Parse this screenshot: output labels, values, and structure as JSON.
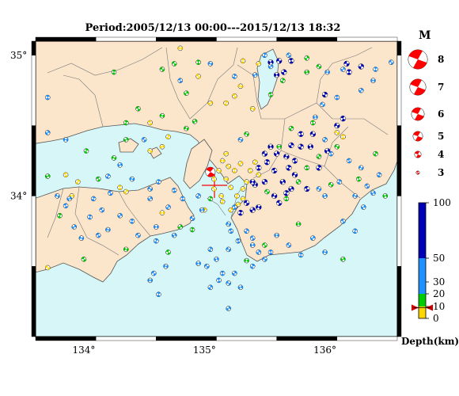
{
  "title": "Period:2005/12/13 00:00---2015/12/13 18:32",
  "map": {
    "lon_range": [
      133.6,
      136.6
    ],
    "lat_range": [
      33.0,
      35.1
    ],
    "lat_ticks": [
      {
        "label": "35°",
        "value": 35.0
      },
      {
        "label": "34°",
        "value": 34.0
      }
    ],
    "lon_ticks": [
      {
        "label": "134°",
        "value": 134.0
      },
      {
        "label": "135°",
        "value": 135.0
      },
      {
        "label": "136°",
        "value": 136.0
      }
    ],
    "colors": {
      "sea": "#d6f6f8",
      "land": "#fbe6cc",
      "border": "#444444"
    }
  },
  "magnitude_legend": {
    "title": "M",
    "items": [
      {
        "label": "8",
        "mag": 8
      },
      {
        "label": "7",
        "mag": 7
      },
      {
        "label": "6",
        "mag": 6
      },
      {
        "label": "5",
        "mag": 5
      },
      {
        "label": "4",
        "mag": 4
      },
      {
        "label": "3",
        "mag": 3
      }
    ]
  },
  "depth_legend": {
    "label": "Depth(km)",
    "ticks": [
      {
        "label": "100",
        "value": 100
      },
      {
        "label": "50",
        "value": 50
      },
      {
        "label": "30",
        "value": 30
      },
      {
        "label": "20",
        "value": 20
      },
      {
        "label": "10",
        "value": 10
      },
      {
        "label": "0",
        "value": 0
      }
    ],
    "bands": [
      {
        "from": 0,
        "to": 10,
        "color": "#ffd700"
      },
      {
        "from": 10,
        "to": 20,
        "color": "#00cc00"
      },
      {
        "from": 20,
        "to": 50,
        "color": "#1e90ff"
      },
      {
        "from": 50,
        "to": 100,
        "color": "#0000b4"
      }
    ],
    "highlight_depth": 9
  },
  "highlight_event": {
    "lon": 135.05,
    "lat": 34.17,
    "depth": 9,
    "mag": 5,
    "color": "#ff0000"
  },
  "event_groups": [
    {
      "depth": 15,
      "mag": 3.4,
      "events": [
        [
          134.75,
          34.94
        ],
        [
          134.25,
          34.88
        ],
        [
          134.85,
          34.73
        ],
        [
          134.65,
          34.57
        ],
        [
          134.45,
          34.62
        ],
        [
          134.35,
          34.52
        ],
        [
          134.35,
          34.4
        ],
        [
          134.25,
          34.27
        ],
        [
          134.12,
          34.12
        ],
        [
          134.02,
          34.32
        ],
        [
          133.7,
          34.14
        ],
        [
          135.35,
          34.44
        ],
        [
          135.55,
          34.72
        ],
        [
          135.65,
          34.82
        ],
        [
          135.85,
          34.88
        ],
        [
          135.95,
          34.92
        ],
        [
          135.9,
          34.52
        ],
        [
          135.72,
          34.48
        ],
        [
          135.62,
          34.35
        ],
        [
          135.52,
          34.03
        ],
        [
          135.68,
          33.98
        ],
        [
          135.78,
          34.1
        ],
        [
          135.35,
          33.54
        ],
        [
          135.5,
          33.65
        ],
        [
          134.9,
          33.76
        ],
        [
          134.8,
          33.78
        ],
        [
          134.35,
          33.62
        ],
        [
          134.0,
          33.55
        ],
        [
          133.8,
          33.86
        ],
        [
          134.92,
          34.53
        ],
        [
          134.85,
          34.48
        ],
        [
          134.7,
          33.6
        ],
        [
          135.05,
          33.98
        ],
        [
          136.15,
          33.55
        ],
        [
          136.1,
          34.35
        ],
        [
          136.28,
          34.12
        ],
        [
          136.42,
          34.3
        ],
        [
          136.5,
          34.0
        ],
        [
          136.05,
          34.08
        ],
        [
          135.85,
          34.2
        ],
        [
          135.95,
          34.28
        ],
        [
          135.78,
          33.8
        ],
        [
          134.65,
          34.9
        ],
        [
          134.95,
          34.95
        ],
        [
          135.85,
          34.98
        ]
      ]
    },
    {
      "depth": 5,
      "mag": 3.4,
      "events": [
        [
          134.8,
          35.05
        ],
        [
          134.95,
          34.85
        ],
        [
          135.32,
          34.96
        ],
        [
          135.45,
          34.94
        ],
        [
          135.3,
          34.78
        ],
        [
          135.25,
          34.71
        ],
        [
          135.18,
          34.66
        ],
        [
          135.05,
          34.66
        ],
        [
          135.4,
          34.62
        ],
        [
          134.55,
          34.52
        ],
        [
          134.7,
          34.42
        ],
        [
          134.65,
          34.35
        ],
        [
          134.55,
          34.32
        ],
        [
          133.85,
          34.15
        ],
        [
          133.95,
          34.1
        ],
        [
          133.9,
          34.0
        ],
        [
          133.7,
          33.49
        ],
        [
          134.3,
          34.06
        ],
        [
          134.35,
          34.03
        ],
        [
          135.15,
          34.25
        ],
        [
          135.2,
          34.21
        ],
        [
          135.25,
          34.18
        ],
        [
          135.3,
          34.23
        ],
        [
          135.18,
          34.12
        ],
        [
          135.22,
          34.06
        ],
        [
          135.27,
          34.0
        ],
        [
          135.32,
          34.05
        ],
        [
          135.14,
          34.0
        ],
        [
          135.08,
          34.05
        ],
        [
          135.15,
          33.96
        ],
        [
          135.28,
          33.94
        ],
        [
          135.35,
          34.1
        ],
        [
          135.38,
          34.18
        ],
        [
          135.42,
          34.24
        ],
        [
          135.18,
          34.3
        ],
        [
          135.12,
          34.18
        ],
        [
          135.08,
          34.12
        ],
        [
          135.22,
          33.9
        ],
        [
          135.32,
          33.98
        ],
        [
          136.1,
          34.45
        ],
        [
          136.15,
          34.42
        ],
        [
          135.0,
          33.9
        ],
        [
          134.65,
          33.88
        ],
        [
          135.45,
          34.15
        ]
      ]
    },
    {
      "depth": 35,
      "mag": 3.4,
      "events": [
        [
          133.7,
          34.7
        ],
        [
          133.7,
          34.45
        ],
        [
          133.85,
          34.4
        ],
        [
          134.5,
          34.4
        ],
        [
          134.62,
          34.1
        ],
        [
          134.55,
          33.98
        ],
        [
          134.4,
          34.12
        ],
        [
          134.22,
          34.02
        ],
        [
          134.08,
          33.98
        ],
        [
          133.88,
          33.98
        ],
        [
          133.78,
          34.0
        ],
        [
          133.85,
          33.93
        ],
        [
          134.2,
          34.14
        ],
        [
          134.3,
          34.22
        ],
        [
          134.55,
          34.05
        ],
        [
          134.75,
          34.04
        ],
        [
          134.95,
          34.0
        ],
        [
          134.98,
          33.9
        ],
        [
          134.9,
          33.84
        ],
        [
          134.82,
          33.98
        ],
        [
          134.7,
          33.92
        ],
        [
          134.6,
          33.78
        ],
        [
          134.45,
          33.72
        ],
        [
          134.4,
          33.82
        ],
        [
          134.3,
          33.86
        ],
        [
          134.2,
          33.76
        ],
        [
          134.15,
          33.9
        ],
        [
          134.05,
          33.85
        ],
        [
          133.92,
          33.78
        ],
        [
          133.98,
          33.7
        ],
        [
          134.12,
          33.72
        ],
        [
          134.6,
          33.68
        ],
        [
          134.75,
          33.72
        ],
        [
          135.2,
          33.8
        ],
        [
          135.22,
          33.75
        ],
        [
          135.05,
          33.62
        ],
        [
          135.1,
          33.55
        ],
        [
          135.2,
          33.62
        ],
        [
          135.28,
          33.68
        ],
        [
          135.35,
          33.75
        ],
        [
          135.4,
          33.65
        ],
        [
          135.5,
          33.55
        ],
        [
          135.55,
          33.6
        ],
        [
          135.45,
          33.6
        ],
        [
          135.6,
          33.72
        ],
        [
          135.7,
          33.65
        ],
        [
          135.8,
          33.58
        ],
        [
          135.9,
          33.7
        ],
        [
          136.0,
          33.6
        ],
        [
          136.15,
          33.82
        ],
        [
          136.25,
          33.75
        ],
        [
          136.32,
          33.92
        ],
        [
          136.25,
          34.0
        ],
        [
          136.35,
          34.07
        ],
        [
          136.45,
          34.15
        ],
        [
          136.4,
          34.02
        ],
        [
          136.3,
          34.2
        ],
        [
          136.2,
          34.25
        ],
        [
          136.12,
          34.1
        ],
        [
          136.0,
          34.0
        ],
        [
          135.95,
          34.05
        ],
        [
          136.05,
          34.3
        ],
        [
          136.0,
          34.4
        ],
        [
          135.92,
          34.56
        ],
        [
          135.98,
          34.65
        ],
        [
          136.1,
          34.7
        ],
        [
          136.3,
          34.75
        ],
        [
          136.4,
          34.82
        ],
        [
          136.55,
          34.95
        ],
        [
          136.42,
          34.9
        ],
        [
          136.15,
          34.9
        ],
        [
          136.02,
          34.88
        ],
        [
          135.7,
          35.0
        ],
        [
          135.5,
          35.0
        ],
        [
          135.55,
          34.92
        ],
        [
          135.05,
          34.94
        ],
        [
          134.8,
          34.82
        ],
        [
          135.25,
          34.85
        ],
        [
          135.42,
          34.86
        ],
        [
          135.3,
          34.4
        ],
        [
          135.25,
          33.92
        ],
        [
          135.4,
          33.5
        ],
        [
          135.3,
          33.35
        ],
        [
          135.2,
          33.38
        ],
        [
          135.12,
          33.4
        ],
        [
          135.05,
          33.35
        ],
        [
          134.95,
          33.52
        ],
        [
          135.02,
          33.5
        ],
        [
          135.15,
          33.45
        ],
        [
          135.25,
          33.45
        ],
        [
          134.55,
          33.4
        ],
        [
          134.58,
          33.45
        ],
        [
          134.62,
          33.3
        ],
        [
          135.2,
          33.2
        ],
        [
          134.68,
          33.5
        ],
        [
          135.4,
          33.7
        ]
      ]
    },
    {
      "depth": 55,
      "mag": 3.6,
      "events": [
        [
          135.52,
          34.24
        ],
        [
          135.6,
          34.3
        ],
        [
          135.68,
          34.28
        ],
        [
          135.58,
          34.18
        ],
        [
          135.7,
          34.2
        ],
        [
          135.65,
          34.1
        ],
        [
          135.75,
          34.15
        ],
        [
          135.75,
          34.25
        ],
        [
          135.8,
          34.35
        ],
        [
          135.88,
          34.35
        ],
        [
          135.9,
          34.44
        ],
        [
          135.8,
          34.44
        ],
        [
          135.72,
          34.36
        ],
        [
          135.55,
          34.35
        ],
        [
          135.5,
          34.3
        ],
        [
          135.45,
          34.2
        ],
        [
          135.5,
          34.1
        ],
        [
          135.42,
          34.08
        ],
        [
          135.35,
          33.95
        ],
        [
          135.3,
          33.88
        ],
        [
          135.4,
          33.9
        ],
        [
          135.45,
          33.92
        ],
        [
          135.62,
          33.95
        ],
        [
          135.68,
          34.02
        ],
        [
          135.72,
          34.05
        ],
        [
          135.58,
          34.0
        ],
        [
          135.85,
          34.05
        ],
        [
          135.95,
          34.2
        ],
        [
          136.02,
          34.32
        ],
        [
          136.1,
          34.5
        ],
        [
          136.15,
          34.55
        ],
        [
          136.0,
          34.72
        ],
        [
          135.55,
          34.95
        ],
        [
          135.62,
          34.96
        ],
        [
          135.72,
          34.96
        ],
        [
          135.66,
          34.88
        ],
        [
          135.6,
          34.86
        ],
        [
          136.18,
          34.94
        ],
        [
          136.2,
          34.88
        ],
        [
          136.3,
          34.92
        ],
        [
          135.4,
          34.1
        ]
      ]
    }
  ]
}
